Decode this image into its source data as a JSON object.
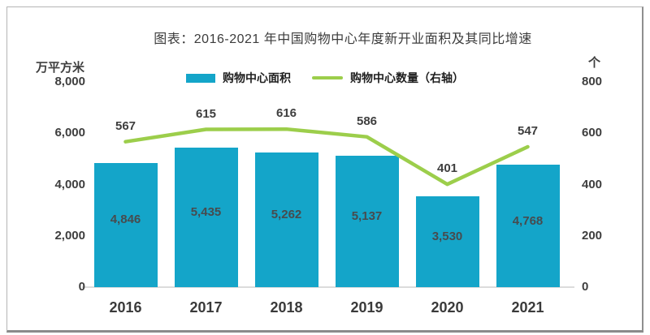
{
  "title": "图表：2016-2021 年中国购物中心年度新开业面积及其同比增速",
  "legend": {
    "bar_label": "购物中心面积",
    "line_label": "购物中心数量（右轴）"
  },
  "colors": {
    "bar": "#14A5C9",
    "line": "#9CCE4B",
    "baseline": "#dcdcdc",
    "text_dark": "#3e3e3e"
  },
  "chart_data": {
    "type": "bar",
    "subtype": "bar+line combo, dual axis",
    "title": "图表：2016-2021 年中国购物中心年度新开业面积及其同比增速",
    "categories": [
      "2016",
      "2017",
      "2018",
      "2019",
      "2020",
      "2021"
    ],
    "series": [
      {
        "name": "购物中心面积",
        "type": "bar",
        "axis": "left",
        "color": "#14A5C9",
        "values": [
          4846,
          5435,
          5262,
          5137,
          3530,
          4768
        ],
        "labels": [
          "4,846",
          "5,435",
          "5,262",
          "5,137",
          "3,530",
          "4,768"
        ]
      },
      {
        "name": "购物中心数量（右轴）",
        "type": "line",
        "axis": "right",
        "color": "#9CCE4B",
        "values": [
          567,
          615,
          616,
          586,
          401,
          547
        ],
        "labels": [
          "567",
          "615",
          "616",
          "586",
          "401",
          "547"
        ]
      }
    ],
    "left_axis": {
      "unit": "万平方米",
      "min": 0,
      "max": 8000,
      "tick_values": [
        8000,
        6000,
        4000,
        2000,
        0
      ],
      "tick_labels": [
        "8,000",
        "6,000",
        "4,000",
        "2,000",
        "0"
      ]
    },
    "right_axis": {
      "unit": "个",
      "min": 0,
      "max": 800,
      "tick_values": [
        800,
        600,
        400,
        200,
        0
      ],
      "tick_labels": [
        "800",
        "600",
        "400",
        "200",
        "0"
      ]
    },
    "grid": false,
    "legend_position": "top-center"
  }
}
